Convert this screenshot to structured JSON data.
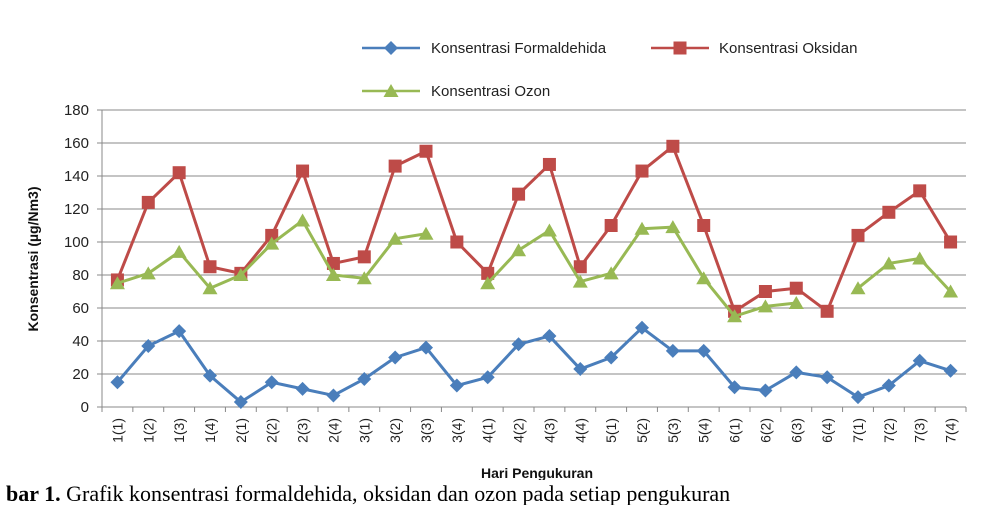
{
  "colors": {
    "formaldehida": "#4a7ebb",
    "oksidan": "#be4b48",
    "ozon": "#98b954",
    "grid": "#888888",
    "axis": "#888888"
  },
  "caption": {
    "prefix": "bar 1.",
    "text": "Grafik konsentrasi formaldehida, oksidan dan ozon pada setiap pengukuran"
  },
  "chart_data": {
    "type": "line",
    "title": "",
    "xlabel": "Hari Pengukuran",
    "ylabel": "Konsentrasi (µg/Nm3)",
    "ylim": [
      0,
      180
    ],
    "yticks": [
      0,
      20,
      40,
      60,
      80,
      100,
      120,
      140,
      160,
      180
    ],
    "grid": "horizontal",
    "legend_position": "top",
    "categories": [
      "1(1)",
      "1(2)",
      "1(3)",
      "1(4)",
      "2(1)",
      "2(2)",
      "2(3)",
      "2(4)",
      "3(1)",
      "3(2)",
      "3(3)",
      "3(4)",
      "4(1)",
      "4(2)",
      "4(3)",
      "4(4)",
      "5(1)",
      "5(2)",
      "5(3)",
      "5(4)",
      "6(1)",
      "6(2)",
      "6(3)",
      "6(4)",
      "7(1)",
      "7(2)",
      "7(3)",
      "7(4)"
    ],
    "series": [
      {
        "name": "Konsentrasi Formaldehida",
        "marker": "diamond",
        "color": "#4a7ebb",
        "values": [
          15,
          37,
          46,
          19,
          3,
          15,
          11,
          7,
          17,
          30,
          36,
          13,
          18,
          38,
          43,
          23,
          30,
          48,
          34,
          34,
          12,
          10,
          21,
          18,
          6,
          13,
          28,
          22
        ]
      },
      {
        "name": "Konsentrasi Oksidan",
        "marker": "square",
        "color": "#be4b48",
        "values": [
          77,
          124,
          142,
          85,
          81,
          104,
          143,
          87,
          91,
          146,
          155,
          100,
          81,
          129,
          147,
          85,
          110,
          143,
          158,
          110,
          58,
          70,
          72,
          58,
          104,
          118,
          131,
          100
        ]
      },
      {
        "name": "Konsentrasi Ozon",
        "marker": "triangle",
        "color": "#98b954",
        "values": [
          75,
          81,
          94,
          72,
          80,
          99,
          113,
          80,
          78,
          102,
          105,
          null,
          75,
          95,
          107,
          76,
          81,
          108,
          109,
          78,
          55,
          61,
          63,
          null,
          72,
          87,
          90,
          70
        ]
      }
    ]
  }
}
